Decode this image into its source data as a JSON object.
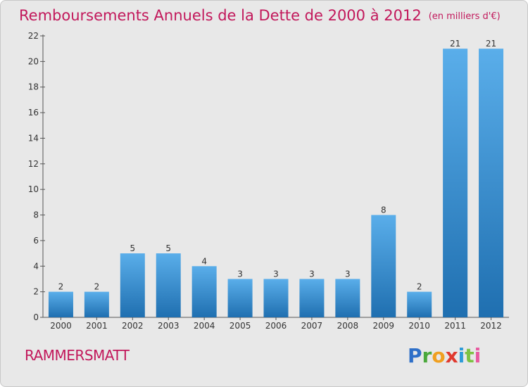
{
  "header": {
    "title": "Remboursements Annuels de la Dette de 2000 à 2012",
    "unit": "(en milliers d'€)"
  },
  "footer": {
    "town": "RAMMERSMATT",
    "logo_letters": [
      "P",
      "r",
      "o",
      "x",
      "i",
      "t",
      "i"
    ]
  },
  "chart_data": {
    "type": "bar",
    "title": "Remboursements Annuels de la Dette de 2000 à 2012",
    "subtitle": "(en milliers d'€)",
    "xlabel": "",
    "ylabel": "",
    "categories": [
      "2000",
      "2001",
      "2002",
      "2003",
      "2004",
      "2005",
      "2006",
      "2007",
      "2008",
      "2009",
      "2010",
      "2011",
      "2012"
    ],
    "values": [
      2,
      2,
      5,
      5,
      4,
      3,
      3,
      3,
      3,
      8,
      2,
      21,
      21
    ],
    "ylim": [
      0,
      22
    ],
    "yticks": [
      0,
      2,
      4,
      6,
      8,
      10,
      12,
      14,
      16,
      18,
      20,
      22
    ],
    "grid": false,
    "legend": "none",
    "colors": {
      "bar_top": "#5aaeea",
      "bar_bottom": "#1f6fb0",
      "axis": "#555555",
      "title": "#c2185b"
    }
  }
}
